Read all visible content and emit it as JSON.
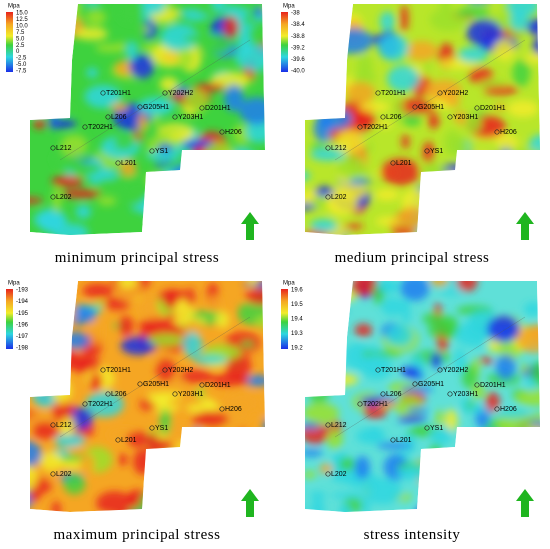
{
  "panels": [
    {
      "caption": "minimum principal stress",
      "legend": {
        "unit": "Mpa",
        "ticks": [
          "15.0",
          "12.5",
          "10.0",
          "7.5",
          "5.0",
          "2.5",
          "0",
          "-2.5",
          "-5.0",
          "-7.5"
        ]
      },
      "wells": [
        "T201H1",
        "Y202H2",
        "G205H1",
        "D201H1",
        "L206",
        "Y203H1",
        "T202H1",
        "H206",
        "L212",
        "YS1",
        "L201",
        "L202"
      ]
    },
    {
      "caption": "medium principal stress",
      "legend": {
        "unit": "Mpa",
        "ticks": [
          "-38",
          "-38.4",
          "-38.8",
          "-39.2",
          "-39.6",
          "-40.0"
        ]
      },
      "wells": [
        "T201H1",
        "Y202H2",
        "G205H1",
        "D201H1",
        "L206",
        "Y203H1",
        "T202H1",
        "H206",
        "L212",
        "YS1",
        "L201",
        "L202"
      ]
    },
    {
      "caption": "maximum principal stress",
      "legend": {
        "unit": "Mpa",
        "ticks": [
          "-193",
          "-194",
          "-195",
          "-196",
          "-197",
          "-198"
        ]
      },
      "wells": [
        "T201H1",
        "Y202H2",
        "G205H1",
        "D201H1",
        "L206",
        "Y203H1",
        "T202H1",
        "H206",
        "L212",
        "YS1",
        "L201",
        "L202"
      ]
    },
    {
      "caption": "stress intensity",
      "legend": {
        "unit": "Mpa",
        "ticks": [
          "19.6",
          "19.5",
          "19.4",
          "19.3",
          "19.2"
        ]
      },
      "wells": [
        "T201H1",
        "Y202H2",
        "G205H1",
        "D201H1",
        "L206",
        "Y203H1",
        "T202H1",
        "H206",
        "L212",
        "YS1",
        "L201",
        "L202"
      ]
    }
  ]
}
